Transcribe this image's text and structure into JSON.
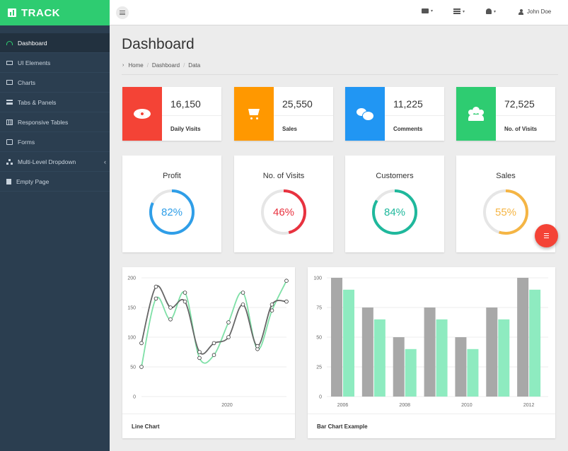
{
  "brand": "TRACK",
  "sidebar": {
    "items": [
      {
        "label": "Dashboard",
        "active": true
      },
      {
        "label": "UI Elements"
      },
      {
        "label": "Charts"
      },
      {
        "label": "Tabs & Panels"
      },
      {
        "label": "Responsive Tables"
      },
      {
        "label": "Forms"
      },
      {
        "label": "Multi-Level Dropdown",
        "caret": "‹"
      },
      {
        "label": "Empty Page"
      }
    ]
  },
  "topbar": {
    "user_name": "John Doe",
    "dropdown_arrow": "▾"
  },
  "page": {
    "title": "Dashboard",
    "breadcrumb": [
      "Home",
      "Dashboard",
      "Data"
    ],
    "breadcrumb_sep": "/",
    "breadcrumb_chevron": "›"
  },
  "stats": [
    {
      "value": "16,150",
      "label": "Daily Visits",
      "color": "#f44336",
      "icon": "eye-icon"
    },
    {
      "value": "25,550",
      "label": "Sales",
      "color": "#ff9800",
      "icon": "shopping-cart-icon"
    },
    {
      "value": "11,225",
      "label": "Comments",
      "color": "#2196f3",
      "icon": "comments-icon"
    },
    {
      "value": "72,525",
      "label": "No. of Visits",
      "color": "#2ecc71",
      "icon": "users-icon"
    }
  ],
  "gauges": [
    {
      "title": "Profit",
      "value": "82%",
      "percent": 82,
      "color": "#2f9ee8"
    },
    {
      "title": "No. of Visits",
      "value": "46%",
      "percent": 46,
      "color": "#e8323f"
    },
    {
      "title": "Customers",
      "value": "84%",
      "percent": 84,
      "color": "#1fb89c"
    },
    {
      "title": "Sales",
      "value": "55%",
      "percent": 55,
      "color": "#f5b544"
    }
  ],
  "chart_data": [
    {
      "type": "line",
      "title": "Line Chart",
      "ylim": [
        0,
        200
      ],
      "yticks": [
        "0",
        "50",
        "100",
        "150",
        "200"
      ],
      "xtick_label": "2020",
      "series": [
        {
          "values": [
            50,
            165,
            130,
            175,
            65,
            70,
            125,
            175,
            80,
            145,
            195
          ],
          "color": "#7fe0a7"
        },
        {
          "values": [
            90,
            185,
            150,
            160,
            75,
            90,
            100,
            155,
            85,
            155,
            160
          ],
          "color": "#666666"
        }
      ]
    },
    {
      "type": "bar",
      "title": "Bar Chart Example",
      "ylim": [
        0,
        100
      ],
      "yticks": [
        "0",
        "25",
        "50",
        "75",
        "100"
      ],
      "xtick_labels": [
        "2006",
        "2008",
        "2010",
        "2012"
      ],
      "series": [
        {
          "values": [
            100,
            75,
            50,
            75,
            50,
            75,
            100
          ],
          "color": "#a8a8a8"
        },
        {
          "values": [
            90,
            65,
            40,
            65,
            40,
            65,
            90
          ],
          "color": "#8eebc0"
        }
      ]
    }
  ]
}
